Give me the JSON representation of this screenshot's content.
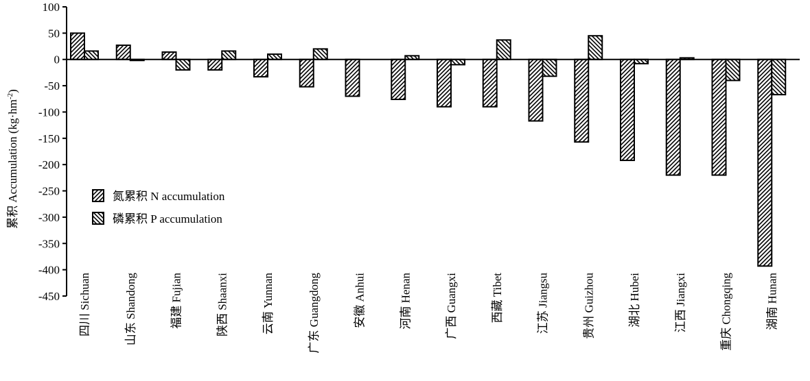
{
  "chart_data": {
    "type": "bar",
    "ylabel": "累积 Accumulation (kg·hm",
    "ylabel_sup": "-2",
    "ylabel_close": ")",
    "ylim": [
      -450,
      100
    ],
    "yticks": [
      100,
      50,
      0,
      -50,
      -100,
      -150,
      -200,
      -250,
      -300,
      -350,
      -400,
      -450
    ],
    "ytick_labels": [
      "100",
      "50",
      "0",
      "-50",
      "-100",
      "-150",
      "-200",
      "-250",
      "-300",
      "-350",
      "-400",
      "-450"
    ],
    "grid": false,
    "legend_position": "left",
    "categories": [
      "四川 Sichuan",
      "山东 Shandong",
      "福建 Fujian",
      "陕西 Shaanxi",
      "云南 Yunnan",
      "广东 Guangdong",
      "安徽 Anhui",
      "河南 Henan",
      "广西 Guangxi",
      "西藏 Tibet",
      "江苏 Jiangsu",
      "贵州 Guizhou",
      "湖北 Hubei",
      "江西 Jiangxi",
      "重庆 Chongqing",
      "湖南 Hunan"
    ],
    "series": [
      {
        "name": "氮累积 N accumulation",
        "pattern": "hatch-fwd",
        "values": [
          50,
          27,
          14,
          -20,
          -33,
          -52,
          -70,
          -76,
          -90,
          -90,
          -117,
          -157,
          -192,
          -220,
          -220,
          -393
        ]
      },
      {
        "name": "磷累积 P accumulation",
        "pattern": "hatch-back",
        "values": [
          16,
          -2,
          -20,
          16,
          10,
          20,
          0,
          7,
          -10,
          37,
          -32,
          45,
          -8,
          3,
          -40,
          -67
        ]
      }
    ]
  }
}
